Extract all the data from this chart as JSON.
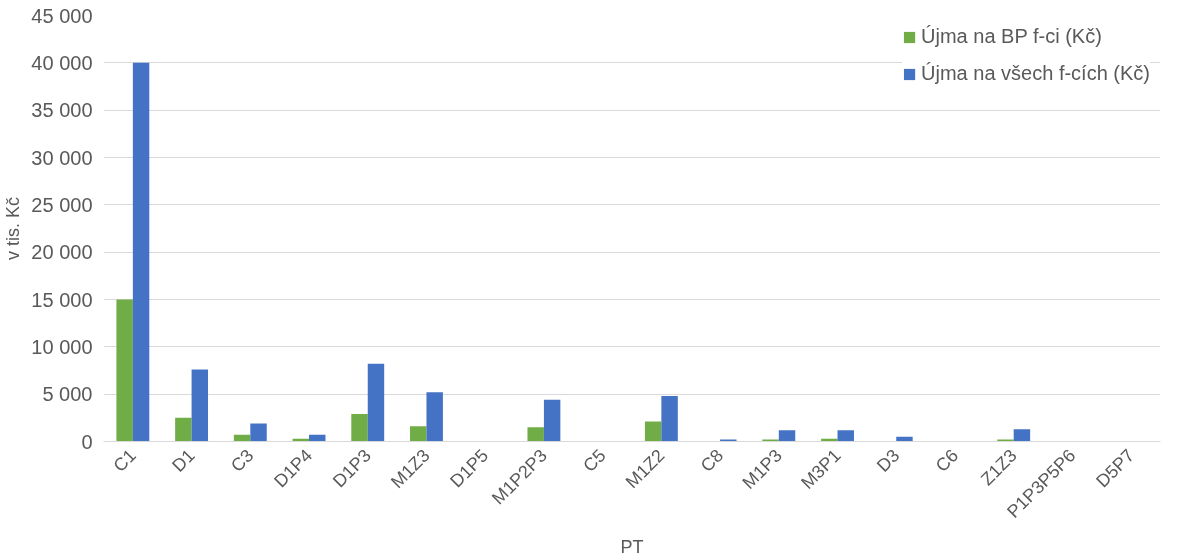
{
  "chart_data": {
    "type": "bar",
    "xlabel": "PT",
    "ylabel": "v tis. Kč",
    "categories": [
      "C1",
      "D1",
      "C3",
      "D1P4",
      "D1P3",
      "M1Z3",
      "D1P5",
      "M1P2P3",
      "C5",
      "M1Z2",
      "C8",
      "M1P3",
      "M3P1",
      "D3",
      "C6",
      "Z1Z3",
      "P1P3P5P6",
      "D5P7"
    ],
    "series": [
      {
        "name": "Újma na BP f-ci (Kč)",
        "color": "#70ad47",
        "values": [
          15000,
          2500,
          700,
          300,
          2900,
          1600,
          0,
          1500,
          0,
          2100,
          0,
          200,
          300,
          0,
          0,
          200,
          0,
          0
        ]
      },
      {
        "name": "Újma na všech f-cích (Kč)",
        "color": "#4472c4",
        "values": [
          40000,
          7600,
          1900,
          700,
          8200,
          5200,
          0,
          4400,
          0,
          4800,
          200,
          1200,
          1200,
          500,
          0,
          1300,
          0,
          0
        ]
      }
    ],
    "ylim": [
      0,
      45000
    ],
    "yticks": [
      0,
      {
        "value": 5000,
        "label": "5 000"
      },
      {
        "value": 10000,
        "label": "10 000"
      },
      {
        "value": 15000,
        "label": "15 000"
      },
      {
        "value": 20000,
        "label": "20 000"
      },
      {
        "value": 25000,
        "label": "25 000"
      },
      {
        "value": 30000,
        "label": "30 000"
      },
      {
        "value": 35000,
        "label": "35 000"
      },
      {
        "value": 40000,
        "label": "40 000"
      },
      {
        "value": 45000,
        "label": "45 000"
      }
    ],
    "grid": "y",
    "legend": "top right"
  }
}
